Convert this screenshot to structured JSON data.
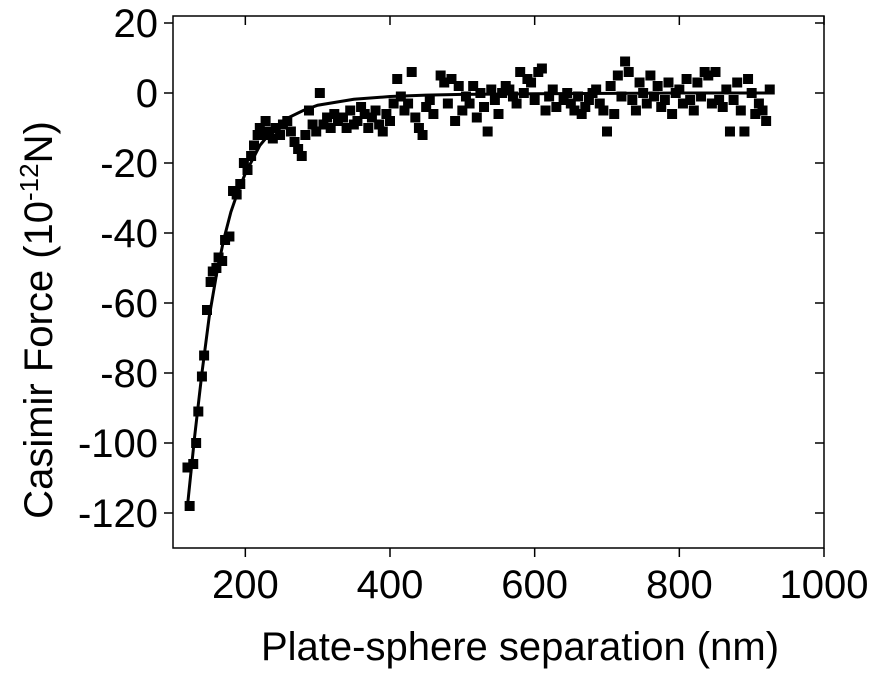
{
  "chart_data": {
    "type": "scatter",
    "ylabel": "Casimir Force (10",
    "ylabel_sup": "-12",
    "ylabel_end": "N)",
    "xlabel": "Plate-sphere separation (nm)",
    "xlim": [
      100,
      1000
    ],
    "xticks": [
      200,
      400,
      600,
      800,
      1000
    ],
    "ylim": [
      -130,
      22
    ],
    "yticks": [
      20,
      0,
      -20,
      -40,
      -60,
      -80,
      -100,
      -120
    ],
    "series": [
      {
        "mode": "markers",
        "color": "#000000",
        "x": [
          120,
          123,
          128,
          132,
          135,
          140,
          143,
          147,
          152,
          155,
          160,
          163,
          168,
          172,
          178,
          183,
          188,
          193,
          198,
          203,
          208,
          212,
          217,
          220,
          225,
          228,
          233,
          238,
          242,
          248,
          252,
          258,
          263,
          268,
          273,
          278,
          283,
          288,
          293,
          298,
          303,
          308,
          313,
          318,
          323,
          328,
          335,
          340,
          345,
          350,
          355,
          360,
          365,
          370,
          375,
          380,
          385,
          390,
          395,
          400,
          405,
          410,
          415,
          420,
          425,
          430,
          435,
          440,
          445,
          450,
          455,
          460,
          470,
          475,
          480,
          485,
          490,
          495,
          500,
          505,
          510,
          515,
          520,
          525,
          530,
          535,
          540,
          545,
          550,
          555,
          560,
          565,
          570,
          575,
          580,
          585,
          590,
          595,
          600,
          605,
          610,
          615,
          620,
          625,
          630,
          640,
          645,
          650,
          655,
          660,
          665,
          670,
          675,
          680,
          685,
          690,
          695,
          700,
          705,
          710,
          715,
          720,
          725,
          730,
          735,
          740,
          745,
          750,
          755,
          760,
          765,
          770,
          775,
          780,
          785,
          790,
          795,
          800,
          805,
          810,
          815,
          820,
          825,
          830,
          835,
          840,
          845,
          850,
          855,
          860,
          865,
          870,
          875,
          880,
          885,
          890,
          895,
          900,
          905,
          910,
          915,
          920,
          925
        ],
        "values": [
          -107,
          -118,
          -106,
          -100,
          -91,
          -81,
          -75,
          -62,
          -54,
          -51,
          -50,
          -47,
          -48,
          -42,
          -41,
          -28,
          -29,
          -26,
          -20,
          -22,
          -18,
          -15,
          -12,
          -10,
          -12,
          -8,
          -11,
          -13,
          -10,
          -12,
          -9,
          -8,
          -11,
          -14,
          -16,
          -18,
          -12,
          -5,
          -9,
          -11,
          0,
          -9,
          -7,
          -10,
          -6,
          -8,
          -7,
          -10,
          -5,
          -9,
          -8,
          -4,
          -6,
          -10,
          -7,
          -5,
          -9,
          -11,
          -6,
          -8,
          -3,
          4,
          -1,
          -5,
          -3,
          6,
          -7,
          -10,
          -12,
          -4,
          -2,
          -6,
          5,
          3,
          -3,
          4,
          -8,
          2,
          -5,
          -1,
          -3,
          2,
          -7,
          0,
          -4,
          -11,
          1,
          -2,
          -6,
          0,
          2,
          1,
          -1,
          -3,
          6,
          0,
          4,
          3,
          -2,
          6,
          7,
          -5,
          -1,
          1,
          -4,
          -2,
          0,
          -3,
          -5,
          -1,
          -6,
          -4,
          -2,
          0,
          1,
          -3,
          -5,
          -11,
          2,
          -6,
          5,
          -1,
          9,
          6,
          -2,
          -5,
          3,
          0,
          -3,
          5,
          -1,
          2,
          -4,
          -2,
          3,
          -6,
          0,
          1,
          -3,
          4,
          -2,
          -5,
          3,
          -1,
          6,
          5,
          -3,
          6,
          -2,
          -4,
          1,
          -11,
          -2,
          3,
          -5,
          -11,
          4,
          0,
          -6,
          -3,
          -5,
          -8,
          1
        ]
      },
      {
        "mode": "line",
        "color": "#000000",
        "x": [
          120,
          130,
          140,
          150,
          160,
          170,
          180,
          190,
          200,
          220,
          240,
          260,
          280,
          300,
          350,
          400,
          450,
          500,
          600,
          700,
          800,
          900,
          920
        ],
        "values": [
          -118,
          -98,
          -80,
          -64,
          -52,
          -42,
          -34,
          -28,
          -23,
          -15,
          -10,
          -7,
          -5,
          -3.5,
          -1.8,
          -1,
          -0.6,
          -0.4,
          -0.2,
          -0.1,
          0,
          0,
          0
        ]
      }
    ]
  }
}
